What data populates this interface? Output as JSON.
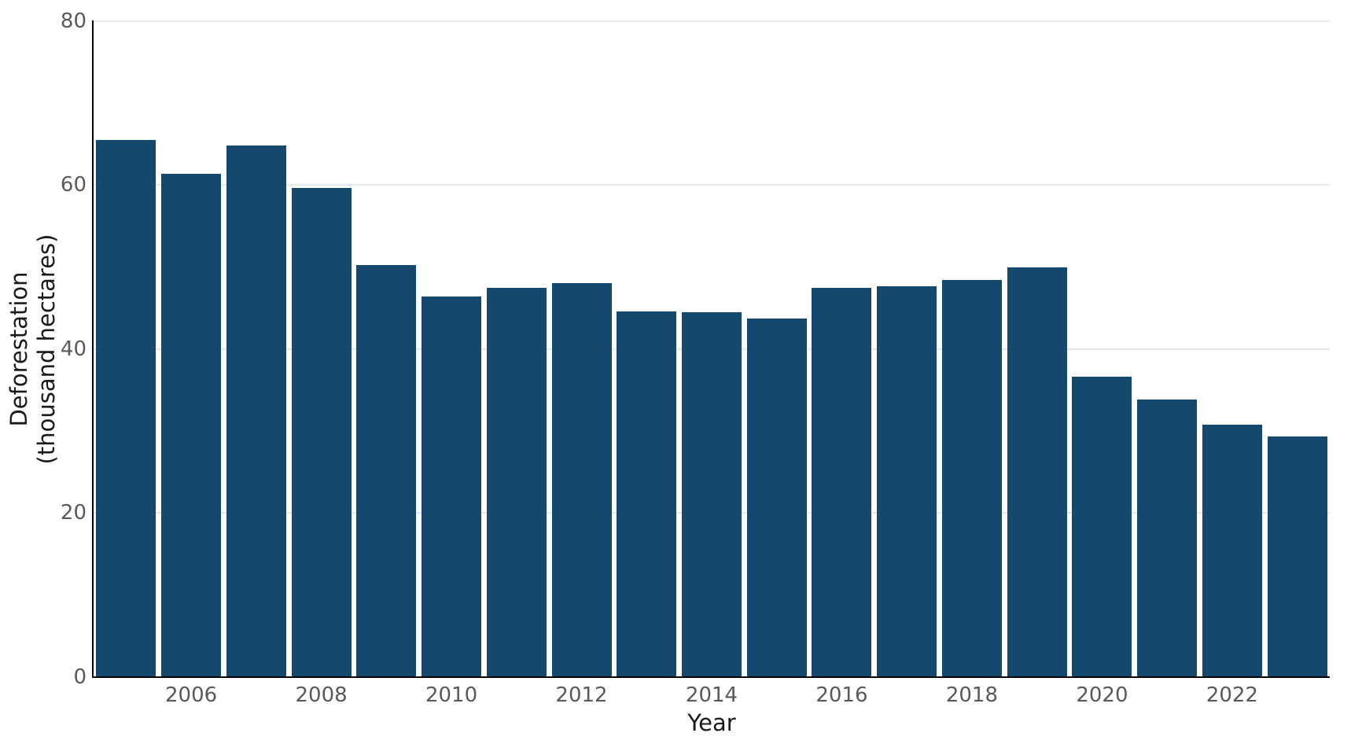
{
  "chart_data": {
    "type": "bar",
    "title": "",
    "xlabel": "Year",
    "ylabel": "Deforestation (thousand hectares)",
    "ylabel_line1": "Deforestation",
    "ylabel_line2": "(thousand hectares)",
    "categories": [
      2005,
      2006,
      2007,
      2008,
      2009,
      2010,
      2011,
      2012,
      2013,
      2014,
      2015,
      2016,
      2017,
      2018,
      2019,
      2020,
      2021,
      2022,
      2023
    ],
    "values": [
      65.5,
      61.4,
      64.8,
      59.7,
      50.2,
      46.4,
      47.5,
      48.0,
      44.6,
      44.5,
      43.7,
      47.5,
      47.7,
      48.4,
      50.0,
      36.6,
      33.8,
      30.8,
      29.3
    ],
    "ylim": [
      0,
      80
    ],
    "yticks": [
      0,
      20,
      40,
      60,
      80
    ],
    "xticks": [
      2006,
      2008,
      2010,
      2012,
      2014,
      2016,
      2018,
      2020,
      2022
    ],
    "grid": "horizontal",
    "legend": "none",
    "colors": {
      "bar": "#14486e",
      "gridline": "#e7e7e7",
      "spine": "#000000",
      "tick_label": "#595959",
      "axis_label": "#1a1a1a",
      "background": "#ffffff"
    }
  }
}
